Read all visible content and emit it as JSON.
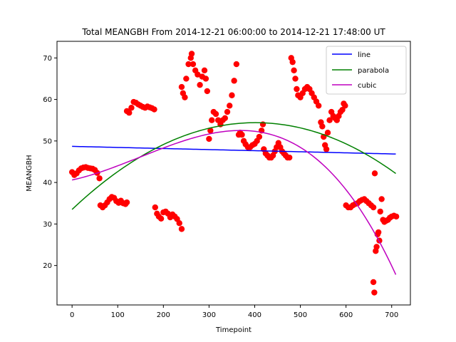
{
  "chart_data": {
    "type": "scatter",
    "title": "Total MEANGBH From 2014-12-21 06:00:00 to 2014-12-21 17:48:00 UT",
    "xlabel": "Timepoint",
    "ylabel": "MEANGBH",
    "xlim": [
      -33,
      741
    ],
    "ylim": [
      10.5,
      74
    ],
    "xticks": [
      0,
      100,
      200,
      300,
      400,
      500,
      600,
      700
    ],
    "yticks": [
      20,
      30,
      40,
      50,
      60,
      70
    ],
    "grid": false,
    "legend_position": "top-right",
    "colors": {
      "points": "#ff0000",
      "line": "#0000ff",
      "parabola": "#008000",
      "cubic": "#bf00bf"
    },
    "points_name": "MEANGBH",
    "points": [
      [
        0,
        42.5
      ],
      [
        5,
        41.8
      ],
      [
        10,
        42.2
      ],
      [
        15,
        42.9
      ],
      [
        20,
        43.4
      ],
      [
        25,
        43.6
      ],
      [
        30,
        43.7
      ],
      [
        35,
        43.5
      ],
      [
        40,
        43.4
      ],
      [
        45,
        43.3
      ],
      [
        50,
        43.0
      ],
      [
        55,
        42.3
      ],
      [
        60,
        41.0
      ],
      [
        62,
        34.5
      ],
      [
        67,
        34.0
      ],
      [
        72,
        34.5
      ],
      [
        77,
        35.2
      ],
      [
        82,
        36.0
      ],
      [
        87,
        36.5
      ],
      [
        92,
        36.3
      ],
      [
        97,
        35.5
      ],
      [
        102,
        35.1
      ],
      [
        107,
        35.6
      ],
      [
        112,
        35.0
      ],
      [
        117,
        34.8
      ],
      [
        120,
        35.2
      ],
      [
        120,
        57.2
      ],
      [
        125,
        56.8
      ],
      [
        130,
        58.0
      ],
      [
        135,
        59.4
      ],
      [
        140,
        59.2
      ],
      [
        145,
        58.8
      ],
      [
        150,
        58.5
      ],
      [
        155,
        58.2
      ],
      [
        160,
        58.0
      ],
      [
        165,
        58.3
      ],
      [
        170,
        58.1
      ],
      [
        175,
        57.9
      ],
      [
        180,
        57.6
      ],
      [
        182,
        34.0
      ],
      [
        186,
        32.5
      ],
      [
        190,
        31.8
      ],
      [
        195,
        31.3
      ],
      [
        200,
        32.8
      ],
      [
        205,
        33.0
      ],
      [
        210,
        32.5
      ],
      [
        215,
        31.6
      ],
      [
        220,
        32.3
      ],
      [
        225,
        31.8
      ],
      [
        230,
        31.2
      ],
      [
        235,
        30.2
      ],
      [
        240,
        28.8
      ],
      [
        240,
        63.0
      ],
      [
        243,
        61.5
      ],
      [
        247,
        60.5
      ],
      [
        250,
        65.0
      ],
      [
        255,
        68.5
      ],
      [
        260,
        70.0
      ],
      [
        262,
        71.0
      ],
      [
        265,
        68.5
      ],
      [
        270,
        67.0
      ],
      [
        275,
        66.0
      ],
      [
        280,
        63.5
      ],
      [
        285,
        65.5
      ],
      [
        290,
        67.0
      ],
      [
        293,
        65.0
      ],
      [
        296,
        62.0
      ],
      [
        300,
        50.5
      ],
      [
        303,
        52.5
      ],
      [
        306,
        55.0
      ],
      [
        310,
        57.0
      ],
      [
        315,
        56.5
      ],
      [
        320,
        55.0
      ],
      [
        325,
        54.0
      ],
      [
        330,
        55.0
      ],
      [
        335,
        55.5
      ],
      [
        340,
        57.0
      ],
      [
        345,
        58.5
      ],
      [
        350,
        61.0
      ],
      [
        355,
        64.5
      ],
      [
        360,
        68.5
      ],
      [
        365,
        51.5
      ],
      [
        368,
        52.0
      ],
      [
        372,
        51.5
      ],
      [
        376,
        50.0
      ],
      [
        380,
        49.2
      ],
      [
        385,
        48.5
      ],
      [
        390,
        48.5
      ],
      [
        395,
        49.0
      ],
      [
        400,
        49.3
      ],
      [
        405,
        50.0
      ],
      [
        410,
        51.0
      ],
      [
        415,
        52.5
      ],
      [
        418,
        54.0
      ],
      [
        420,
        48.0
      ],
      [
        424,
        47.0
      ],
      [
        428,
        46.5
      ],
      [
        432,
        46.0
      ],
      [
        436,
        46.0
      ],
      [
        440,
        46.5
      ],
      [
        444,
        47.5
      ],
      [
        448,
        48.5
      ],
      [
        452,
        49.5
      ],
      [
        456,
        48.5
      ],
      [
        460,
        47.5
      ],
      [
        464,
        47.0
      ],
      [
        468,
        46.5
      ],
      [
        472,
        46.0
      ],
      [
        476,
        46.0
      ],
      [
        480,
        70.0
      ],
      [
        483,
        69.0
      ],
      [
        486,
        67.0
      ],
      [
        489,
        65.0
      ],
      [
        492,
        62.5
      ],
      [
        495,
        61.0
      ],
      [
        500,
        60.5
      ],
      [
        505,
        61.5
      ],
      [
        510,
        62.5
      ],
      [
        515,
        63.0
      ],
      [
        520,
        62.5
      ],
      [
        525,
        61.5
      ],
      [
        530,
        60.5
      ],
      [
        535,
        59.5
      ],
      [
        540,
        58.5
      ],
      [
        545,
        54.5
      ],
      [
        548,
        53.5
      ],
      [
        551,
        51.0
      ],
      [
        554,
        49.0
      ],
      [
        557,
        48.0
      ],
      [
        560,
        52.0
      ],
      [
        564,
        55.0
      ],
      [
        568,
        57.0
      ],
      [
        572,
        56.0
      ],
      [
        576,
        55.5
      ],
      [
        580,
        55.0
      ],
      [
        584,
        56.0
      ],
      [
        588,
        57.0
      ],
      [
        592,
        57.5
      ],
      [
        595,
        59.0
      ],
      [
        598,
        58.5
      ],
      [
        600,
        34.5
      ],
      [
        605,
        34.0
      ],
      [
        610,
        34.0
      ],
      [
        615,
        34.5
      ],
      [
        620,
        34.8
      ],
      [
        625,
        35.0
      ],
      [
        630,
        35.5
      ],
      [
        635,
        35.8
      ],
      [
        640,
        36.0
      ],
      [
        645,
        35.5
      ],
      [
        650,
        35.0
      ],
      [
        655,
        34.5
      ],
      [
        660,
        34.0
      ],
      [
        660,
        16.0
      ],
      [
        662,
        13.5
      ],
      [
        663,
        42.2
      ],
      [
        665,
        23.5
      ],
      [
        667,
        24.5
      ],
      [
        669,
        27.5
      ],
      [
        671,
        28.0
      ],
      [
        673,
        26.0
      ],
      [
        675,
        33.0
      ],
      [
        678,
        36.0
      ],
      [
        681,
        31.0
      ],
      [
        684,
        30.5
      ],
      [
        688,
        30.8
      ],
      [
        692,
        31.0
      ],
      [
        696,
        31.5
      ],
      [
        700,
        31.8
      ],
      [
        705,
        32.0
      ],
      [
        710,
        31.8
      ]
    ],
    "series": [
      {
        "name": "line",
        "type": "linear",
        "coefficients": [
          48.7,
          -0.0026
        ],
        "x_range": [
          0,
          709
        ]
      },
      {
        "name": "parabola",
        "type": "quadratic",
        "coefficients": [
          33.5,
          0.1041,
          -0.0001296
        ],
        "x_range": [
          0,
          709
        ]
      },
      {
        "name": "cubic",
        "type": "cubic",
        "coefficients": [
          40.6,
          0.0238,
          0.0001338,
          -3e-07
        ],
        "x_range": [
          0,
          709
        ]
      }
    ]
  }
}
